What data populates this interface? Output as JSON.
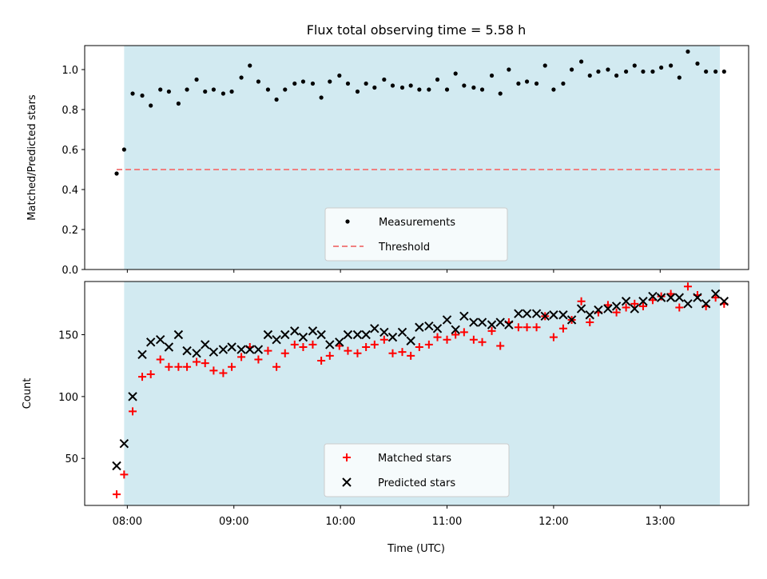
{
  "chart_data": {
    "title": "Flux total observing time = 5.58 h",
    "xlabel": "Time (UTC)",
    "x_ticks": [
      "08:00",
      "09:00",
      "10:00",
      "11:00",
      "12:00",
      "13:00"
    ],
    "xlim_hours": [
      7.6,
      13.83
    ],
    "shaded_region_hours": [
      7.97,
      13.56
    ],
    "colors": {
      "shade": "#add8e6",
      "measurement": "#000000",
      "threshold": "#f08080",
      "matched": "#ff0000",
      "predicted": "#000000"
    },
    "panels": [
      {
        "type": "scatter",
        "ylabel": "Matched/Predicted stars",
        "ylim": [
          0,
          1.12
        ],
        "y_ticks": [
          "0.0",
          "0.2",
          "0.4",
          "0.6",
          "0.8",
          "1.0"
        ],
        "legend": {
          "position": "lower center",
          "entries": [
            "Measurements",
            "Threshold"
          ]
        },
        "threshold": {
          "name": "Threshold",
          "value": 0.5,
          "x_range": [
            7.9,
            13.56
          ]
        },
        "series": [
          {
            "name": "Measurements",
            "x": [
              7.9,
              7.97,
              8.05,
              8.14,
              8.22,
              8.31,
              8.39,
              8.48,
              8.56,
              8.65,
              8.73,
              8.81,
              8.9,
              8.98,
              9.07,
              9.15,
              9.23,
              9.32,
              9.4,
              9.48,
              9.57,
              9.65,
              9.74,
              9.82,
              9.9,
              9.99,
              10.07,
              10.16,
              10.24,
              10.32,
              10.41,
              10.49,
              10.58,
              10.66,
              10.74,
              10.83,
              10.91,
              11.0,
              11.08,
              11.16,
              11.25,
              11.33,
              11.42,
              11.5,
              11.58,
              11.67,
              11.75,
              11.84,
              11.92,
              12.0,
              12.09,
              12.17,
              12.26,
              12.34,
              12.42,
              12.51,
              12.59,
              12.68,
              12.76,
              12.84,
              12.93,
              13.01,
              13.1,
              13.18,
              13.26,
              13.35,
              13.43,
              13.52,
              13.6
            ],
            "y": [
              0.48,
              0.6,
              0.88,
              0.87,
              0.82,
              0.9,
              0.89,
              0.83,
              0.9,
              0.95,
              0.89,
              0.9,
              0.88,
              0.89,
              0.96,
              1.02,
              0.94,
              0.9,
              0.85,
              0.9,
              0.93,
              0.94,
              0.93,
              0.86,
              0.94,
              0.97,
              0.93,
              0.89,
              0.93,
              0.91,
              0.95,
              0.92,
              0.91,
              0.92,
              0.9,
              0.9,
              0.95,
              0.9,
              0.98,
              0.92,
              0.91,
              0.9,
              0.97,
              0.88,
              1.0,
              0.93,
              0.94,
              0.93,
              1.02,
              0.9,
              0.93,
              1.0,
              1.04,
              0.97,
              0.99,
              1.0,
              0.97,
              0.99,
              1.02,
              0.99,
              0.99,
              1.01,
              1.02,
              0.96,
              1.09,
              1.03,
              0.99,
              0.99,
              0.99
            ]
          }
        ]
      },
      {
        "type": "scatter",
        "ylabel": "Count",
        "ylim": [
          12,
          193
        ],
        "y_ticks": [
          "50",
          "100",
          "150"
        ],
        "legend": {
          "position": "lower center",
          "entries": [
            "Matched stars",
            "Predicted stars"
          ]
        },
        "series": [
          {
            "name": "Matched stars",
            "marker": "plus",
            "x": [
              7.9,
              7.97,
              8.05,
              8.14,
              8.22,
              8.31,
              8.39,
              8.48,
              8.56,
              8.65,
              8.73,
              8.81,
              8.9,
              8.98,
              9.07,
              9.15,
              9.23,
              9.32,
              9.4,
              9.48,
              9.57,
              9.65,
              9.74,
              9.82,
              9.9,
              9.99,
              10.07,
              10.16,
              10.24,
              10.32,
              10.41,
              10.49,
              10.58,
              10.66,
              10.74,
              10.83,
              10.91,
              11.0,
              11.08,
              11.16,
              11.25,
              11.33,
              11.42,
              11.5,
              11.58,
              11.67,
              11.75,
              11.84,
              11.92,
              12.0,
              12.09,
              12.17,
              12.26,
              12.34,
              12.42,
              12.51,
              12.59,
              12.68,
              12.76,
              12.84,
              12.93,
              13.01,
              13.1,
              13.18,
              13.26,
              13.35,
              13.43,
              13.52,
              13.6
            ],
            "y": [
              21,
              37,
              88,
              116,
              118,
              130,
              124,
              124,
              124,
              128,
              127,
              121,
              119,
              124,
              132,
              140,
              130,
              137,
              124,
              135,
              142,
              140,
              142,
              129,
              133,
              141,
              137,
              135,
              140,
              142,
              146,
              135,
              136,
              133,
              140,
              142,
              148,
              146,
              150,
              152,
              146,
              144,
              153,
              141,
              160,
              156,
              156,
              156,
              165,
              148,
              155,
              162,
              177,
              160,
              168,
              174,
              168,
              172,
              175,
              173,
              178,
              181,
              183,
              172,
              189,
              182,
              173,
              180,
              175
            ]
          },
          {
            "name": "Predicted stars",
            "marker": "x",
            "x": [
              7.9,
              7.97,
              8.05,
              8.14,
              8.22,
              8.31,
              8.39,
              8.48,
              8.56,
              8.65,
              8.73,
              8.81,
              8.9,
              8.98,
              9.07,
              9.15,
              9.23,
              9.32,
              9.4,
              9.48,
              9.57,
              9.65,
              9.74,
              9.82,
              9.9,
              9.99,
              10.07,
              10.16,
              10.24,
              10.32,
              10.41,
              10.49,
              10.58,
              10.66,
              10.74,
              10.83,
              10.91,
              11.0,
              11.08,
              11.16,
              11.25,
              11.33,
              11.42,
              11.5,
              11.58,
              11.67,
              11.75,
              11.84,
              11.92,
              12.0,
              12.09,
              12.17,
              12.26,
              12.34,
              12.42,
              12.51,
              12.59,
              12.68,
              12.76,
              12.84,
              12.93,
              13.01,
              13.1,
              13.18,
              13.26,
              13.35,
              13.43,
              13.52,
              13.6
            ],
            "y": [
              44,
              62,
              100,
              134,
              144,
              146,
              140,
              150,
              137,
              135,
              142,
              136,
              138,
              140,
              138,
              138,
              138,
              150,
              146,
              150,
              153,
              148,
              153,
              150,
              142,
              144,
              150,
              150,
              150,
              155,
              152,
              148,
              152,
              145,
              156,
              157,
              155,
              162,
              154,
              165,
              160,
              160,
              158,
              160,
              158,
              167,
              167,
              167,
              165,
              166,
              166,
              162,
              171,
              166,
              170,
              171,
              173,
              177,
              171,
              177,
              181,
              180,
              180,
              180,
              175,
              180,
              175,
              183,
              177
            ]
          }
        ]
      }
    ]
  }
}
